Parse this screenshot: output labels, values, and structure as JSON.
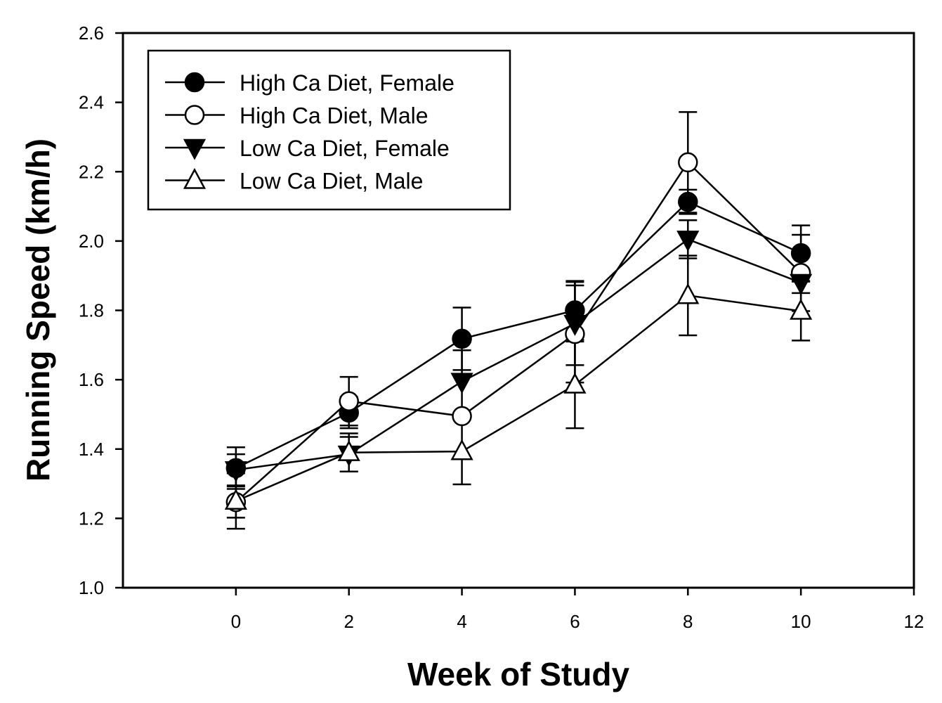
{
  "chart_data": {
    "type": "line",
    "title": "",
    "xlabel": "Week of Study",
    "ylabel": "Running Speed (km/h)",
    "xlim": [
      -2,
      12
    ],
    "ylim": [
      1.0,
      2.6
    ],
    "xticks": [
      0,
      2,
      4,
      6,
      8,
      10,
      12
    ],
    "xtick_labels": [
      "0",
      "2",
      "4",
      "6",
      "8",
      "10",
      "12"
    ],
    "yticks": [
      1.0,
      1.2,
      1.4,
      1.6,
      1.8,
      2.0,
      2.2,
      2.4,
      2.6
    ],
    "ytick_labels": [
      "1.0",
      "1.2",
      "1.4",
      "1.6",
      "1.8",
      "2.0",
      "2.2",
      "2.4",
      "2.6"
    ],
    "grid": false,
    "legend_position": "top-left",
    "x": [
      0,
      2,
      4,
      6,
      8,
      10
    ],
    "series": [
      {
        "name": "High Ca Diet, Female",
        "marker": "circle",
        "filled": true,
        "values": [
          1.345,
          1.505,
          1.718,
          1.8,
          2.113,
          1.965
        ],
        "errors": [
          0.06,
          0.045,
          0.09,
          0.085,
          0.035,
          0.08
        ]
      },
      {
        "name": "High Ca Diet, Male",
        "marker": "circle",
        "filled": false,
        "values": [
          1.247,
          1.538,
          1.495,
          1.732,
          2.227,
          1.908
        ],
        "errors": [
          0.045,
          0.07,
          0.01,
          0.14,
          0.145,
          0.11
        ]
      },
      {
        "name": "Low Ca Diet, Female",
        "marker": "triangle-down",
        "filled": true,
        "values": [
          1.34,
          1.385,
          1.595,
          1.762,
          2.005,
          1.88
        ],
        "errors": [
          0.045,
          0.05,
          0.09,
          0.12,
          0.055,
          0.03
        ]
      },
      {
        "name": "Low Ca Diet, Male",
        "marker": "triangle-up",
        "filled": false,
        "values": [
          1.25,
          1.39,
          1.393,
          1.585,
          1.843,
          1.798
        ],
        "errors": [
          0.08,
          0.055,
          0.095,
          0.125,
          0.115,
          0.085
        ]
      }
    ]
  }
}
